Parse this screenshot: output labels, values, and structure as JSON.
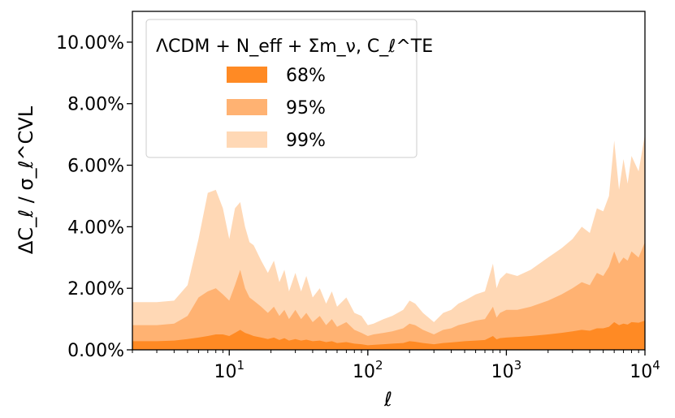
{
  "chart_data": {
    "type": "area",
    "xlabel": "ℓ",
    "ylabel": "ΔC_ℓ / σ_ℓ^CVL",
    "xscale": "log",
    "xlim": [
      2,
      10000
    ],
    "ylim": [
      0,
      11
    ],
    "x_ticks": [
      {
        "value": 10,
        "base": "10",
        "exp": "1"
      },
      {
        "value": 100,
        "base": "10",
        "exp": "2"
      },
      {
        "value": 1000,
        "base": "10",
        "exp": "3"
      },
      {
        "value": 10000,
        "base": "10",
        "exp": "4"
      }
    ],
    "y_ticks": [
      {
        "value": 0,
        "label": "0.00%"
      },
      {
        "value": 2,
        "label": "2.00%"
      },
      {
        "value": 4,
        "label": "4.00%"
      },
      {
        "value": 6,
        "label": "6.00%"
      },
      {
        "value": 8,
        "label": "8.00%"
      },
      {
        "value": 10,
        "label": "10.00%"
      }
    ],
    "legend": {
      "placement": "top-left",
      "title": "ΛCDM + N_eff + Σm_ν, C_ℓ^TE"
    },
    "series": [
      {
        "name": "99%",
        "color": "#ffd8b5",
        "x": [
          2,
          3,
          4,
          5,
          6,
          7,
          8,
          9,
          10,
          11,
          12,
          13,
          14,
          15,
          17,
          19,
          21,
          23,
          25,
          27,
          30,
          33,
          36,
          40,
          45,
          50,
          55,
          60,
          70,
          80,
          90,
          100,
          110,
          130,
          150,
          180,
          200,
          220,
          250,
          300,
          350,
          400,
          450,
          500,
          600,
          700,
          800,
          850,
          900,
          1000,
          1200,
          1500,
          2000,
          2500,
          3000,
          3500,
          4000,
          4500,
          5000,
          5500,
          6000,
          6500,
          7000,
          7500,
          8000,
          9000,
          10000
        ],
        "values": [
          1.55,
          1.55,
          1.6,
          2.1,
          3.6,
          5.1,
          5.2,
          4.6,
          3.6,
          4.6,
          4.8,
          4.0,
          3.5,
          3.4,
          2.9,
          2.5,
          2.9,
          2.2,
          2.6,
          1.9,
          2.5,
          1.9,
          2.4,
          1.7,
          2.0,
          1.5,
          1.9,
          1.4,
          1.7,
          1.2,
          1.1,
          0.8,
          0.85,
          1.0,
          1.1,
          1.3,
          1.6,
          1.5,
          1.2,
          0.9,
          1.2,
          1.3,
          1.5,
          1.6,
          1.8,
          1.9,
          2.8,
          2.0,
          2.3,
          2.5,
          2.4,
          2.6,
          3.0,
          3.3,
          3.6,
          4.0,
          3.8,
          4.6,
          4.5,
          5.0,
          6.8,
          5.2,
          6.2,
          5.4,
          6.3,
          5.8,
          7.0
        ]
      },
      {
        "name": "95%",
        "color": "#ffb272",
        "x": [
          2,
          3,
          4,
          5,
          6,
          7,
          8,
          9,
          10,
          11,
          12,
          13,
          14,
          15,
          17,
          19,
          21,
          23,
          25,
          27,
          30,
          33,
          36,
          40,
          45,
          50,
          55,
          60,
          70,
          80,
          90,
          100,
          110,
          130,
          150,
          180,
          200,
          220,
          250,
          300,
          350,
          400,
          450,
          500,
          600,
          700,
          800,
          850,
          900,
          1000,
          1200,
          1500,
          2000,
          2500,
          3000,
          3500,
          4000,
          4500,
          5000,
          5500,
          6000,
          6500,
          7000,
          7500,
          8000,
          9000,
          10000
        ],
        "values": [
          0.8,
          0.8,
          0.85,
          1.1,
          1.7,
          1.9,
          2.0,
          1.8,
          1.6,
          2.1,
          2.6,
          2.0,
          1.7,
          1.6,
          1.4,
          1.2,
          1.4,
          1.1,
          1.3,
          1.0,
          1.3,
          1.0,
          1.2,
          0.9,
          1.1,
          0.8,
          1.0,
          0.75,
          0.9,
          0.65,
          0.55,
          0.45,
          0.5,
          0.55,
          0.6,
          0.7,
          0.85,
          0.8,
          0.65,
          0.5,
          0.65,
          0.7,
          0.8,
          0.85,
          0.95,
          1.0,
          1.4,
          1.05,
          1.2,
          1.3,
          1.3,
          1.4,
          1.6,
          1.8,
          2.0,
          2.2,
          2.1,
          2.5,
          2.4,
          2.7,
          3.2,
          2.8,
          3.0,
          2.9,
          3.2,
          3.0,
          3.5
        ]
      },
      {
        "name": "68%",
        "color": "#ff8a24",
        "x": [
          2,
          3,
          4,
          5,
          6,
          7,
          8,
          9,
          10,
          11,
          12,
          13,
          14,
          15,
          17,
          19,
          21,
          23,
          25,
          27,
          30,
          33,
          36,
          40,
          45,
          50,
          55,
          60,
          70,
          80,
          90,
          100,
          110,
          130,
          150,
          180,
          200,
          220,
          250,
          300,
          350,
          400,
          450,
          500,
          600,
          700,
          800,
          850,
          900,
          1000,
          1200,
          1500,
          2000,
          2500,
          3000,
          3500,
          4000,
          4500,
          5000,
          5500,
          6000,
          6500,
          7000,
          7500,
          8000,
          9000,
          10000
        ],
        "values": [
          0.28,
          0.28,
          0.3,
          0.35,
          0.4,
          0.45,
          0.5,
          0.5,
          0.45,
          0.55,
          0.65,
          0.55,
          0.5,
          0.45,
          0.4,
          0.35,
          0.4,
          0.32,
          0.38,
          0.3,
          0.35,
          0.3,
          0.33,
          0.28,
          0.3,
          0.25,
          0.28,
          0.22,
          0.25,
          0.2,
          0.18,
          0.15,
          0.16,
          0.18,
          0.2,
          0.22,
          0.28,
          0.26,
          0.22,
          0.18,
          0.22,
          0.24,
          0.26,
          0.28,
          0.3,
          0.32,
          0.45,
          0.34,
          0.38,
          0.4,
          0.42,
          0.45,
          0.5,
          0.55,
          0.6,
          0.65,
          0.62,
          0.7,
          0.7,
          0.75,
          0.9,
          0.8,
          0.85,
          0.82,
          0.9,
          0.88,
          0.95
        ]
      }
    ]
  }
}
